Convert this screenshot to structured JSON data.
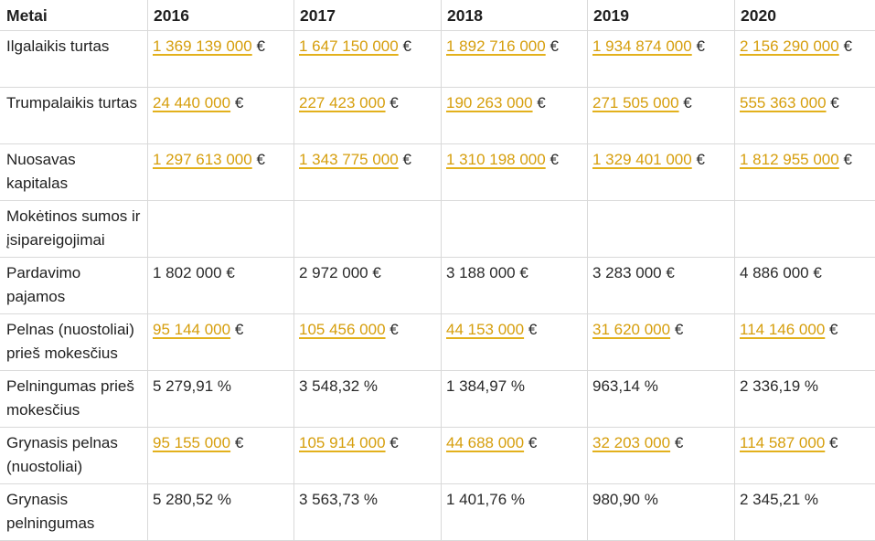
{
  "header": {
    "label": "Metai",
    "years": [
      "2016",
      "2017",
      "2018",
      "2019",
      "2020"
    ]
  },
  "currency_symbol": "€",
  "accent_color": "#d69e0c",
  "rows": [
    {
      "label": "Ilgalaikis turtas",
      "kind": "link",
      "values": [
        "1 369 139 000",
        "1 647 150 000",
        "1 892 716 000",
        "1 934 874 000",
        "2 156 290 000"
      ]
    },
    {
      "label": "Trumpalaikis turtas",
      "kind": "link",
      "values": [
        "24 440 000",
        "227 423 000",
        "190 263 000",
        "271 505 000",
        "555 363 000"
      ]
    },
    {
      "label": "Nuosavas kapitalas",
      "kind": "link",
      "values": [
        "1 297 613 000",
        "1 343 775 000",
        "1 310 198 000",
        "1 329 401 000",
        "1 812 955 000"
      ]
    },
    {
      "label": "Mokėtinos sumos ir įsipareigojimai",
      "kind": "empty",
      "values": [
        "",
        "",
        "",
        "",
        ""
      ]
    },
    {
      "label": "Pardavimo pajamos",
      "kind": "text",
      "values": [
        "1 802 000 €",
        "2 972 000 €",
        "3 188 000 €",
        "3 283 000 €",
        "4 886 000 €"
      ]
    },
    {
      "label": "Pelnas (nuostoliai) prieš mokesčius",
      "kind": "link",
      "values": [
        "95 144 000",
        "105 456 000",
        "44 153 000",
        "31 620 000",
        "114 146 000"
      ]
    },
    {
      "label": "Pelningumas prieš mokesčius",
      "kind": "text",
      "values": [
        "5 279,91 %",
        "3 548,32 %",
        "1 384,97 %",
        "963,14 %",
        "2 336,19 %"
      ]
    },
    {
      "label": "Grynasis pelnas (nuostoliai)",
      "kind": "link",
      "values": [
        "95 155 000",
        "105 914 000",
        "44 688 000",
        "32 203 000",
        "114 587 000"
      ]
    },
    {
      "label": "Grynasis pelningumas",
      "kind": "text",
      "values": [
        "5 280,52 %",
        "3 563,73 %",
        "1 401,76 %",
        "980,90 %",
        "2 345,21 %"
      ]
    }
  ]
}
